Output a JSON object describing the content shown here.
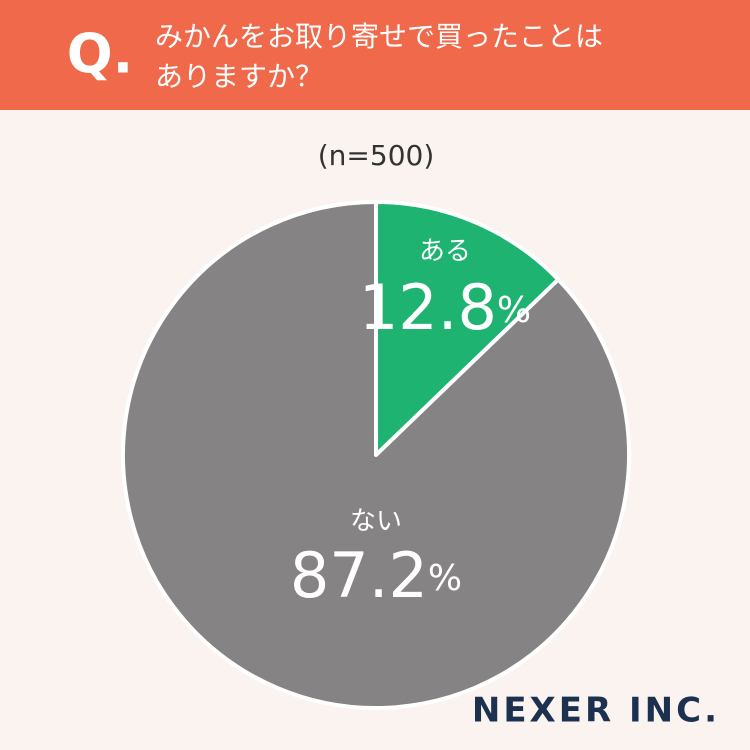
{
  "chart_data": {
    "type": "pie",
    "question_mark": "Q.",
    "title_lines": [
      "みかんをお取り寄せで買ったことは",
      "ありますか？"
    ],
    "subtitle": "(n=500)",
    "categories": [
      "ある",
      "ない"
    ],
    "values": [
      12.8,
      87.2
    ],
    "value_labels": [
      "12.8%",
      "87.2%"
    ],
    "colors": [
      "#1fb371",
      "#858383"
    ],
    "logo": "NEXER INC."
  }
}
